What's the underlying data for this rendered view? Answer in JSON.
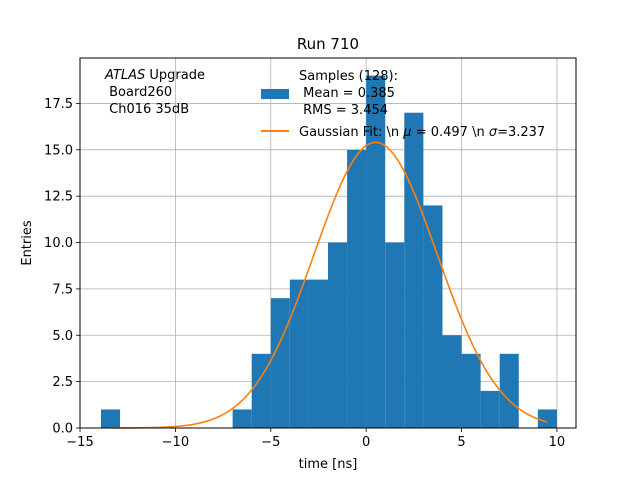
{
  "chart_data": {
    "type": "bar",
    "title": "Run 710",
    "xlabel": "time [ns]",
    "ylabel": "Entries",
    "xlim": [
      -15,
      11
    ],
    "ylim": [
      0,
      19.95
    ],
    "grid": true,
    "x_ticks": [
      -15,
      -10,
      -5,
      0,
      5,
      10
    ],
    "y_ticks": [
      0.0,
      2.5,
      5.0,
      7.5,
      10.0,
      12.5,
      15.0,
      17.5
    ],
    "x_tick_labels": [
      "−15",
      "−10",
      "−5",
      "0",
      "5",
      "10"
    ],
    "y_tick_labels": [
      "0.0",
      "2.5",
      "5.0",
      "7.5",
      "10.0",
      "12.5",
      "15.0",
      "17.5"
    ],
    "bar_color": "#1f77b4",
    "fit_color": "#ff7f0e",
    "histogram": {
      "name": "Samples (128):\n Mean = 0.385\n RMS = 3.454",
      "bins": [
        {
          "x0": -13.9,
          "x1": -12.9,
          "count": 1
        },
        {
          "x0": -7.0,
          "x1": -6.0,
          "count": 1
        },
        {
          "x0": -6.0,
          "x1": -5.0,
          "count": 4
        },
        {
          "x0": -5.0,
          "x1": -4.0,
          "count": 7
        },
        {
          "x0": -4.0,
          "x1": -3.0,
          "count": 8
        },
        {
          "x0": -3.0,
          "x1": -2.0,
          "count": 8
        },
        {
          "x0": -2.0,
          "x1": -1.0,
          "count": 10
        },
        {
          "x0": -1.0,
          "x1": 0.0,
          "count": 15
        },
        {
          "x0": 0.0,
          "x1": 1.0,
          "count": 19
        },
        {
          "x0": 1.0,
          "x1": 2.0,
          "count": 10
        },
        {
          "x0": 2.0,
          "x1": 3.0,
          "count": 17
        },
        {
          "x0": 3.0,
          "x1": 4.0,
          "count": 12
        },
        {
          "x0": 4.0,
          "x1": 5.0,
          "count": 5
        },
        {
          "x0": 5.0,
          "x1": 6.0,
          "count": 4
        },
        {
          "x0": 6.0,
          "x1": 7.0,
          "count": 2
        },
        {
          "x0": 7.0,
          "x1": 8.0,
          "count": 4
        },
        {
          "x0": 8.0,
          "x1": 9.0,
          "count": 0
        },
        {
          "x0": 9.0,
          "x1": 10.0,
          "count": 1
        }
      ]
    },
    "fit": {
      "name": "Gaussian Fit: \\n μ = 0.497 \\n σ=3.237",
      "mu": 0.497,
      "sigma": 3.237,
      "amplitude": 15.4,
      "x_range": [
        -13.4,
        9.5
      ]
    },
    "annotation": {
      "line1_italic": "ATLAS",
      "line1_rest": " Upgrade",
      "line2": " Board260",
      "line3": " Ch016 35dB"
    },
    "legend": {
      "placement": "upper-center",
      "samples_lines": [
        "Samples (128):",
        " Mean = 0.385",
        " RMS = 3.454"
      ],
      "fit_prefix": "Gaussian Fit: \\n ",
      "fit_mu_symbol": "μ",
      "fit_middle": " = 0.497 \\n ",
      "fit_sigma_symbol": "σ",
      "fit_suffix": "=3.237"
    }
  }
}
